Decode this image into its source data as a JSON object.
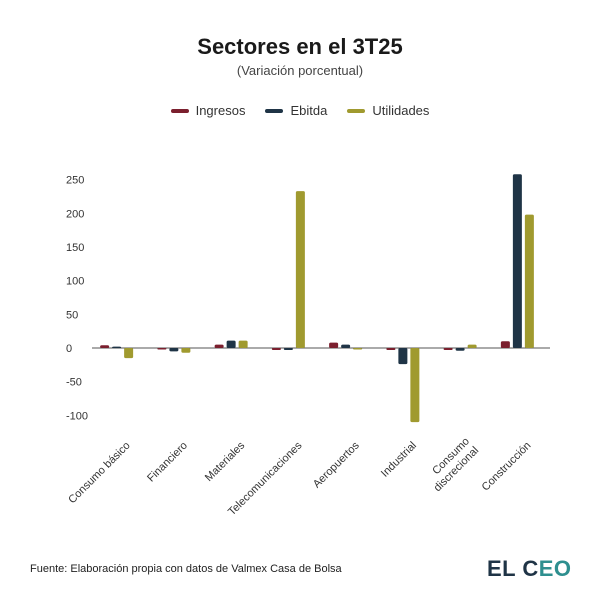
{
  "header": {
    "title": "Sectores en el 3T25",
    "subtitle": "(Variación porcentual)"
  },
  "legend": [
    {
      "label": "Ingresos",
      "color": "#7b1f2e"
    },
    {
      "label": "Ebitda",
      "color": "#1f3446"
    },
    {
      "label": "Utilidades",
      "color": "#a09a2f"
    }
  ],
  "chart_data": {
    "type": "bar",
    "title": "Sectores en el 3T25",
    "subtitle": "(Variación porcentual)",
    "xlabel": "",
    "ylabel": "",
    "ylim": [
      -130,
      280
    ],
    "yticks": [
      250,
      200,
      150,
      100,
      50,
      0,
      -50,
      -100
    ],
    "categories": [
      "Consumo básico",
      "Financiero",
      "Materiales",
      "Telecomunicaciones",
      "Aeropuertos",
      "Industrial",
      "Consumo discrecional",
      "Construcción"
    ],
    "series": [
      {
        "name": "Ingresos",
        "color": "#7b1f2e",
        "values": [
          4,
          -2,
          5,
          -3,
          8,
          -3,
          -3,
          10
        ]
      },
      {
        "name": "Ebitda",
        "color": "#1f3446",
        "values": [
          2,
          -5,
          11,
          -3,
          5,
          -24,
          -4,
          258
        ]
      },
      {
        "name": "Utilidades",
        "color": "#a09a2f",
        "values": [
          -15,
          -7,
          11,
          233,
          -2,
          -110,
          5,
          198
        ]
      }
    ]
  },
  "footer": {
    "source": "Fuente: Elaboración propia con datos de Valmex Casa de Bolsa",
    "logo_part1": "EL C",
    "logo_part2": "EO"
  }
}
